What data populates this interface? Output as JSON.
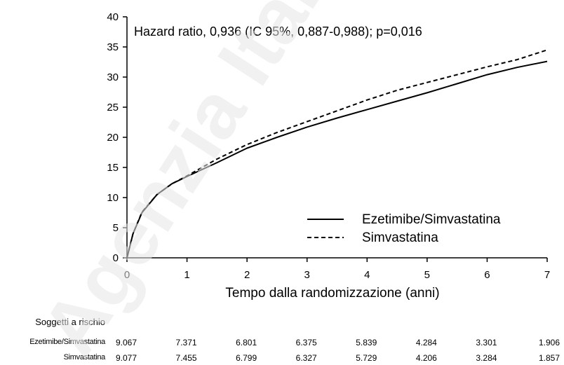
{
  "chart_data": {
    "type": "line",
    "annotation": "Hazard ratio, 0,936 (IC 95%, 0,887-0,988); p=0,016",
    "xlabel": "Tempo dalla randomizzazione (anni)",
    "ylabel": "",
    "xlim": [
      0,
      7
    ],
    "ylim": [
      0,
      40
    ],
    "xticks": [
      "0",
      "1",
      "2",
      "3",
      "4",
      "5",
      "6",
      "7"
    ],
    "yticks": [
      "0",
      "5",
      "10",
      "15",
      "20",
      "25",
      "30",
      "35",
      "40"
    ],
    "legend_position": "lower-right",
    "series": [
      {
        "name": "Ezetimibe/Simvastatina",
        "style": "solid",
        "x": [
          0,
          0.1,
          0.25,
          0.5,
          0.75,
          1.0,
          1.5,
          2.0,
          2.5,
          3.0,
          3.5,
          4.0,
          4.5,
          5.0,
          5.5,
          6.0,
          6.5,
          7.0
        ],
        "y": [
          0,
          4.0,
          7.5,
          10.5,
          12.3,
          13.5,
          15.8,
          18.2,
          20.0,
          21.7,
          23.2,
          24.6,
          26.0,
          27.4,
          28.9,
          30.4,
          31.6,
          32.6
        ]
      },
      {
        "name": "Simvastatina",
        "style": "dashed",
        "x": [
          0,
          0.1,
          0.25,
          0.5,
          0.75,
          1.0,
          1.5,
          2.0,
          2.5,
          3.0,
          3.5,
          4.0,
          4.5,
          5.0,
          5.5,
          6.0,
          6.5,
          7.0
        ],
        "y": [
          0,
          4.0,
          7.6,
          10.5,
          12.3,
          13.6,
          16.4,
          18.8,
          20.8,
          22.6,
          24.4,
          26.2,
          27.8,
          29.1,
          30.4,
          31.7,
          32.9,
          34.5
        ]
      }
    ]
  },
  "risk_table": {
    "title": "Soggetti a rischio",
    "rows": [
      {
        "label": "Ezetimibe/Simvastatina",
        "values": [
          "9.067",
          "7.371",
          "6.801",
          "6.375",
          "5.839",
          "4.284",
          "3.301",
          "1.906"
        ]
      },
      {
        "label": "Simvastatina",
        "values": [
          "9.077",
          "7.455",
          "6.799",
          "6.327",
          "5.729",
          "4.206",
          "3.284",
          "1.857"
        ]
      }
    ]
  },
  "watermark": "Agenzia Italiana",
  "colors": {
    "line": "#000000",
    "axis": "#000000",
    "watermark": "#e6e6e6"
  }
}
